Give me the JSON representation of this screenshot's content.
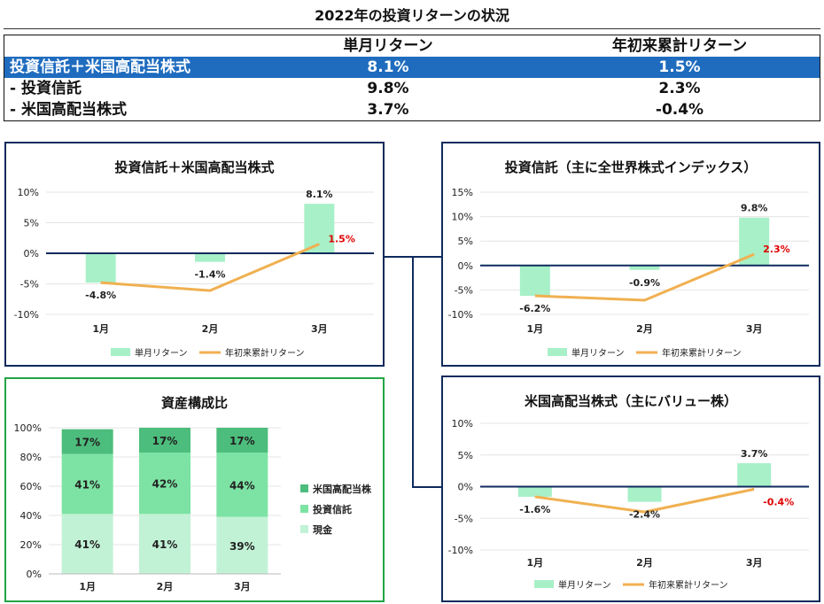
{
  "page_title": "2022年の投資リターンの状況",
  "summary": {
    "headers": [
      "",
      "単月リターン",
      "年初来累計リターン"
    ],
    "rows": [
      {
        "label": "投資信託＋米国高配当株式",
        "monthly": "8.1%",
        "ytd": "1.5%"
      },
      {
        "label": "- 投資信託",
        "monthly": "9.8%",
        "ytd": "2.3%"
      },
      {
        "label": "- 米国高配当株式",
        "monthly": "3.7%",
        "ytd": "-0.4%"
      }
    ]
  },
  "colors": {
    "bar": "#a8f0c8",
    "line": "#f0b050",
    "axis": "#0f2a5c",
    "highlight": "#1f6cbf",
    "red": "#e00000",
    "green_border": "#21a546",
    "navy_border": "#0f2a5c"
  },
  "chart_data": [
    {
      "id": "combined",
      "type": "bar",
      "title": "投資信託＋米国高配当株式",
      "categories": [
        "1月",
        "2月",
        "3月"
      ],
      "ylim": [
        -10,
        10
      ],
      "yticks": [
        "10%",
        "5%",
        "0%",
        "-5%",
        "-10%"
      ],
      "series": [
        {
          "name": "単月リターン",
          "type": "bar",
          "values": [
            -4.8,
            -1.4,
            8.1
          ],
          "labels": [
            "-4.8%",
            "-1.4%",
            "8.1%"
          ]
        },
        {
          "name": "年初来累計リターン",
          "type": "line",
          "values": [
            -4.8,
            -6.1,
            1.5
          ],
          "end_label": "1.5%"
        }
      ],
      "legend": "bottom"
    },
    {
      "id": "funds",
      "type": "bar",
      "title": "投資信託（主に全世界株式インデックス）",
      "categories": [
        "1月",
        "2月",
        "3月"
      ],
      "ylim": [
        -10,
        15
      ],
      "yticks": [
        "15%",
        "10%",
        "5%",
        "0%",
        "-5%",
        "-10%"
      ],
      "series": [
        {
          "name": "単月リターン",
          "type": "bar",
          "values": [
            -6.2,
            -0.9,
            9.8
          ],
          "labels": [
            "-6.2%",
            "-0.9%",
            "9.8%"
          ]
        },
        {
          "name": "年初来累計リターン",
          "type": "line",
          "values": [
            -6.2,
            -7.1,
            2.3
          ],
          "end_label": "2.3%"
        }
      ],
      "legend": "bottom"
    },
    {
      "id": "us_stocks",
      "type": "bar",
      "title": "米国高配当株式（主にバリュー株）",
      "categories": [
        "1月",
        "2月",
        "3月"
      ],
      "ylim": [
        -10,
        10
      ],
      "yticks": [
        "10%",
        "5%",
        "0%",
        "-5%",
        "-10%"
      ],
      "series": [
        {
          "name": "単月リターン",
          "type": "bar",
          "values": [
            -1.6,
            -2.4,
            3.7
          ],
          "labels": [
            "-1.6%",
            "-2.4%",
            "3.7%"
          ]
        },
        {
          "name": "年初来累計リターン",
          "type": "line",
          "values": [
            -1.6,
            -4.0,
            -0.4
          ],
          "end_label": "-0.4%"
        }
      ],
      "legend": "bottom"
    },
    {
      "id": "allocation",
      "type": "bar",
      "stacked": true,
      "title": "資産構成比",
      "categories": [
        "1月",
        "2月",
        "3月"
      ],
      "ylim": [
        0,
        100
      ],
      "yticks": [
        "100%",
        "80%",
        "60%",
        "40%",
        "20%",
        "0%"
      ],
      "series": [
        {
          "name": "現金",
          "values": [
            41,
            41,
            39
          ],
          "labels": [
            "41%",
            "41%",
            "39%"
          ],
          "color": "#c2f2d6"
        },
        {
          "name": "投資信託",
          "values": [
            41,
            42,
            44
          ],
          "labels": [
            "41%",
            "42%",
            "44%"
          ],
          "color": "#7de3a4"
        },
        {
          "name": "米国高配当株",
          "values": [
            17,
            17,
            17
          ],
          "labels": [
            "17%",
            "17%",
            "17%"
          ],
          "color": "#4cbd7c"
        }
      ],
      "legend": "right"
    }
  ]
}
